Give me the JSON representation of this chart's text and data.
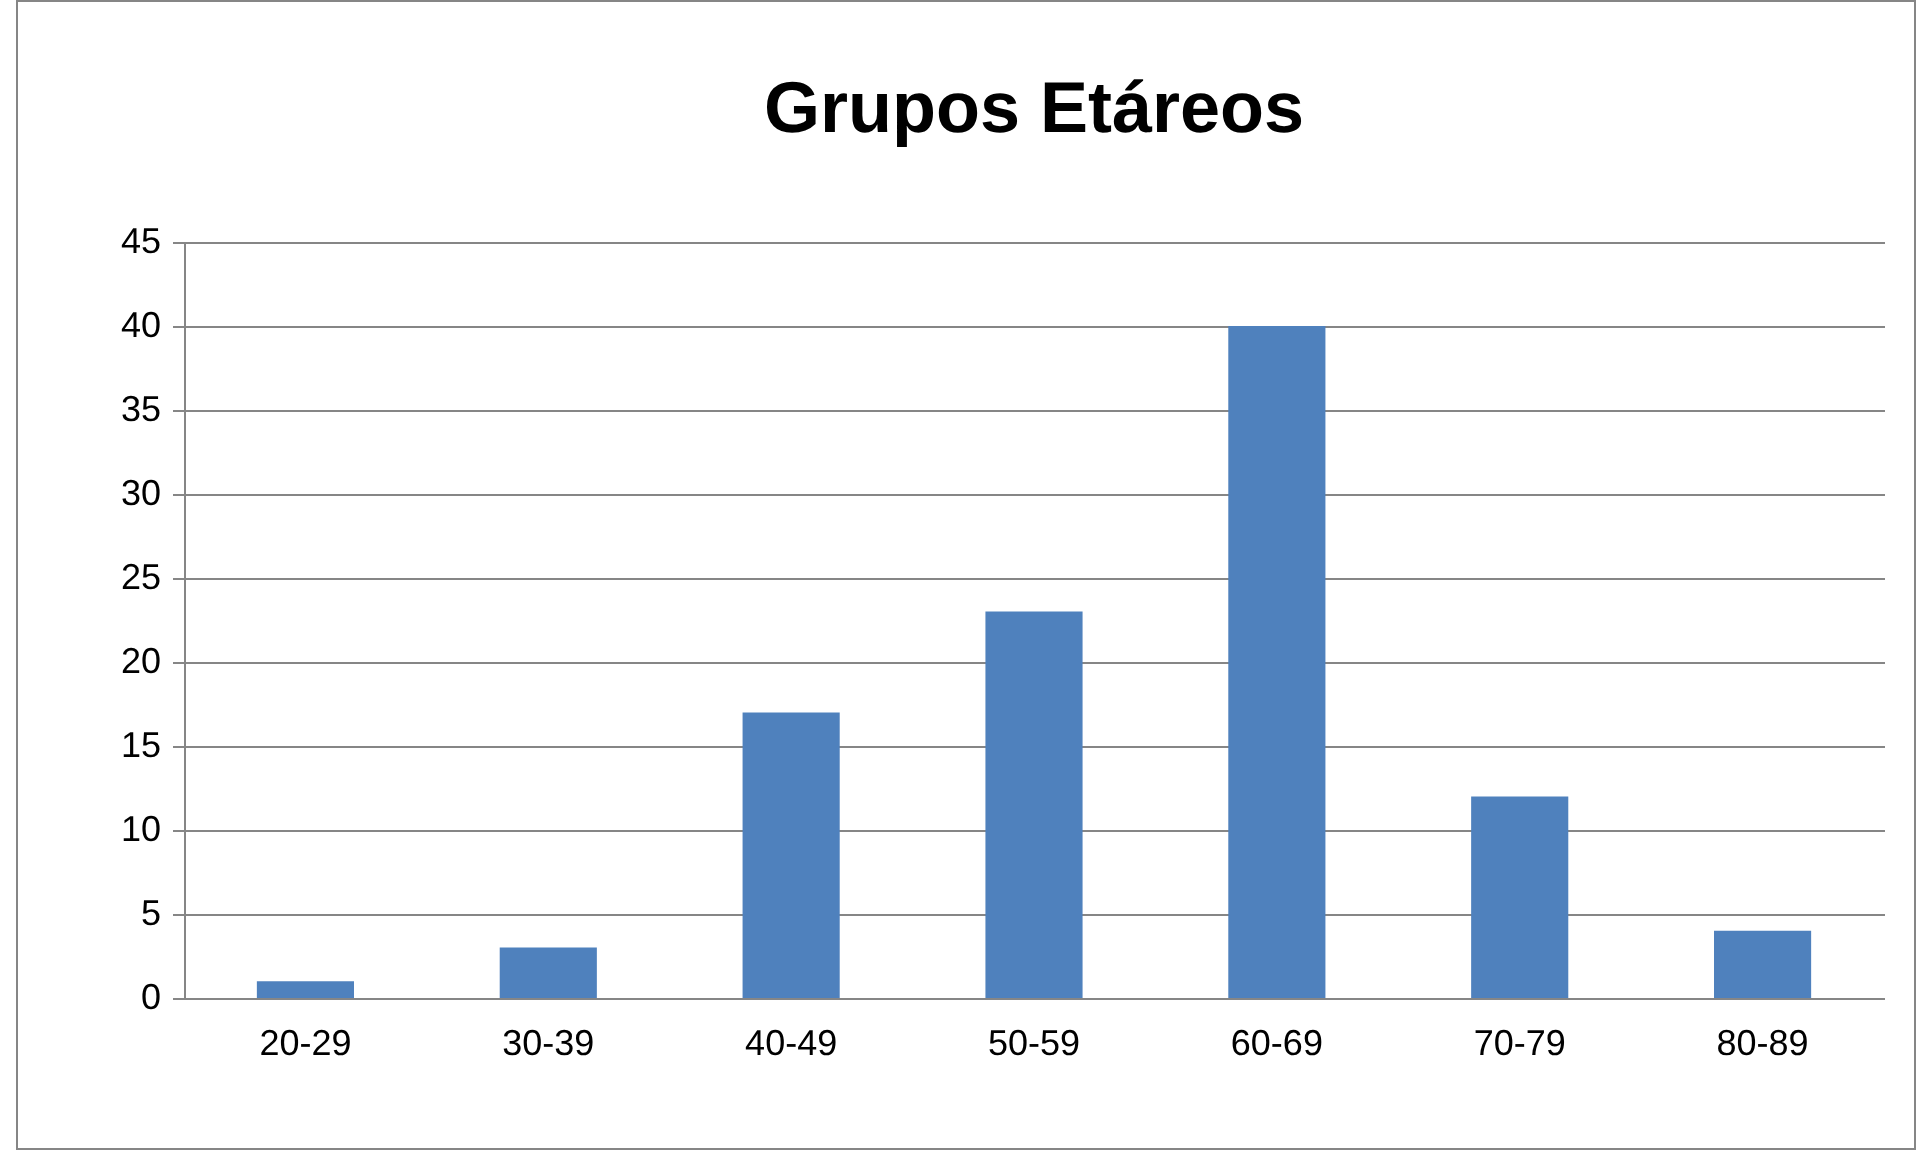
{
  "chart_data": {
    "type": "bar",
    "title": "Grupos Etáreos",
    "categories": [
      "20-29",
      "30-39",
      "40-49",
      "50-59",
      "60-69",
      "70-79",
      "80-89"
    ],
    "values": [
      1,
      3,
      17,
      23,
      40,
      12,
      4
    ],
    "color": "#4f81bd",
    "ylim": [
      0,
      45
    ],
    "yticks": [
      0,
      5,
      10,
      15,
      20,
      25,
      30,
      35,
      40,
      45
    ],
    "grid": "y"
  }
}
